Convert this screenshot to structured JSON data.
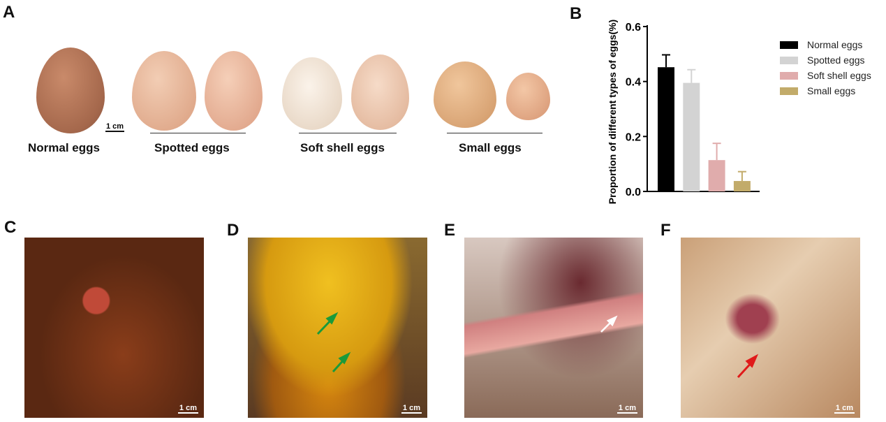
{
  "panel_labels": {
    "a": "A",
    "b": "B",
    "c": "C",
    "d": "D",
    "e": "E",
    "f": "F"
  },
  "egg_groups": [
    {
      "label": "Normal eggs"
    },
    {
      "label": "Spotted eggs"
    },
    {
      "label": "Soft shell eggs"
    },
    {
      "label": "Small eggs"
    }
  ],
  "scale_bar": "1 cm",
  "photo_arrows": {
    "d": "#1a9a3a",
    "e": "#ffffff",
    "f": "#e01a1a"
  },
  "chart_data": {
    "type": "bar",
    "categories": [
      "Normal eggs",
      "Spotted eggs",
      "Soft shell eggs",
      "Small eggs"
    ],
    "values": [
      0.452,
      0.395,
      0.114,
      0.038
    ],
    "error_upper": [
      0.497,
      0.443,
      0.175,
      0.072
    ],
    "colors": [
      "#000000",
      "#d3d3d3",
      "#e0acac",
      "#c2ab6a"
    ],
    "ylabel": "Proportion of different types of eggs(%)",
    "ylim": [
      0,
      0.6
    ],
    "yticks": [
      "0.0",
      "0.2",
      "0.4",
      "0.6"
    ],
    "legend": {
      "placement": "right",
      "entries": [
        "Normal eggs",
        "Spotted eggs",
        "Soft shell eggs",
        "Small eggs"
      ]
    },
    "grid": false
  }
}
